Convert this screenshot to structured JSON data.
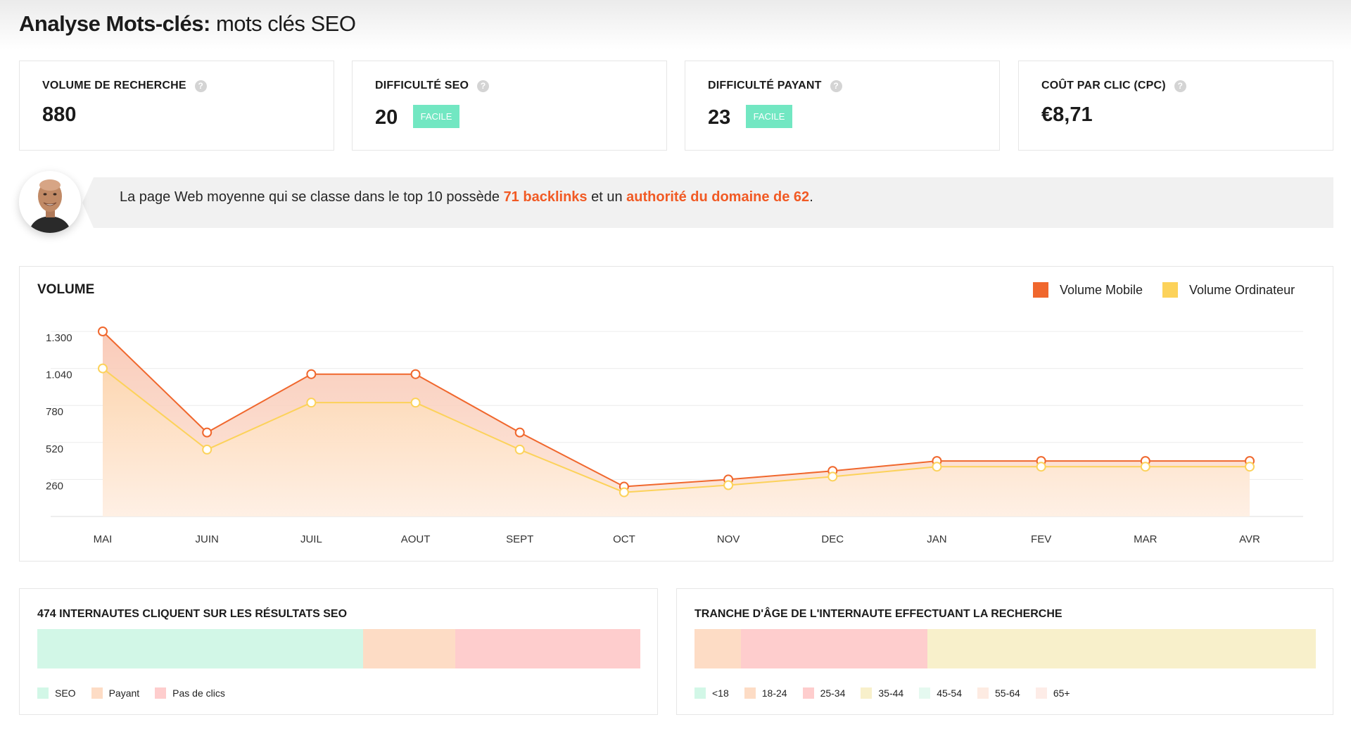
{
  "header": {
    "title_bold": "Analyse Mots-clés:",
    "title_keyword": "mots clés SEO"
  },
  "metrics": [
    {
      "label": "VOLUME DE RECHERCHE",
      "value": "880",
      "badge": ""
    },
    {
      "label": "DIFFICULTÉ SEO",
      "value": "20",
      "badge": "FACILE"
    },
    {
      "label": "DIFFICULTÉ PAYANT",
      "value": "23",
      "badge": "FACILE"
    },
    {
      "label": "COÛT PAR CLIC (CPC)",
      "value": "€8,71",
      "badge": ""
    }
  ],
  "help_icon_glyph": "?",
  "insight": {
    "text_before": "La page Web moyenne qui se classe dans le top 10 possède ",
    "highlight_1": "71 backlinks",
    "text_middle": " et un ",
    "highlight_2": "authorité du domaine de 62",
    "text_after": "."
  },
  "chart_data": {
    "type": "area",
    "title": "VOLUME",
    "categories": [
      "MAI",
      "JUIN",
      "JUIL",
      "AOUT",
      "SEPT",
      "OCT",
      "NOV",
      "DEC",
      "JAN",
      "FEV",
      "MAR",
      "AVR"
    ],
    "y_ticks": [
      "1.300",
      "1.040",
      "780",
      "520",
      "260"
    ],
    "y_tick_values": [
      1300,
      1040,
      780,
      520,
      260
    ],
    "ylim": [
      0,
      1300
    ],
    "grid": true,
    "legend_position": "top-right",
    "series": [
      {
        "name": "Volume Mobile",
        "color": "#f0672d",
        "values": [
          1300,
          590,
          1000,
          1000,
          590,
          210,
          260,
          320,
          390,
          390,
          390,
          390
        ]
      },
      {
        "name": "Volume Ordinateur",
        "color": "#fcd25a",
        "values": [
          1040,
          470,
          800,
          800,
          470,
          170,
          220,
          280,
          350,
          350,
          350,
          350
        ]
      }
    ]
  },
  "clicks": {
    "title": "474 INTERNAUTES CLIQUENT SUR LES RÉSULTATS SEO",
    "segments": [
      {
        "label": "SEO",
        "percent": 54,
        "color": "#d2f7e7"
      },
      {
        "label": "Payant",
        "percent": 15.3,
        "color": "#fddcc5"
      },
      {
        "label": "Pas de clics",
        "percent": 30.7,
        "color": "#fecdcd"
      }
    ]
  },
  "age": {
    "title": "TRANCHE D'ÂGE DE L'INTERNAUTE EFFECTUANT LA RECHERCHE",
    "segments": [
      {
        "label": "<18",
        "percent": 0,
        "color": "#d2f7e7"
      },
      {
        "label": "18-24",
        "percent": 7.5,
        "color": "#fddcc5"
      },
      {
        "label": "25-34",
        "percent": 30,
        "color": "#fecdcd"
      },
      {
        "label": "35-44",
        "percent": 62.5,
        "color": "#f8f0cb"
      },
      {
        "label": "45-54",
        "percent": 0,
        "color": "#e5f9f0"
      },
      {
        "label": "55-64",
        "percent": 0,
        "color": "#fdebe2"
      },
      {
        "label": "65+",
        "percent": 0,
        "color": "#fdece7"
      }
    ]
  }
}
